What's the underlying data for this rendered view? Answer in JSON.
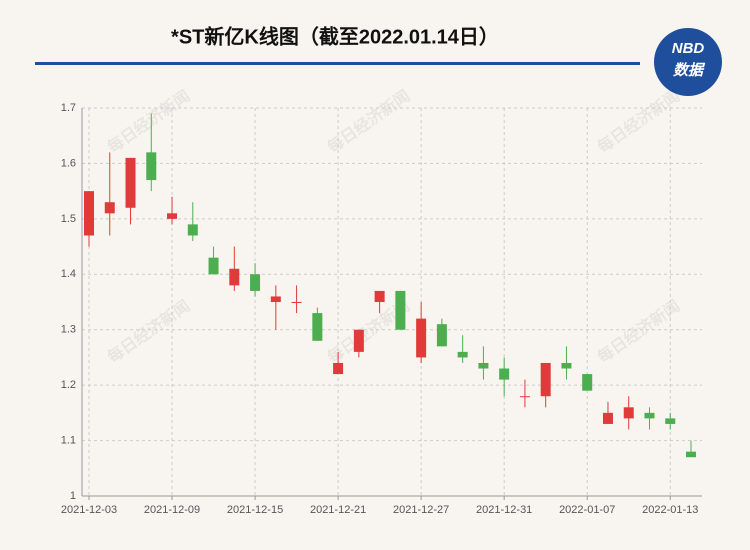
{
  "chart_data": {
    "type": "candlestick",
    "title": "*ST新亿K线图（截至2022.01.14日）",
    "logo": [
      "NBD",
      "数据"
    ],
    "watermark": "每日经济新闻",
    "categories": [
      "2021-12-03",
      null,
      null,
      null,
      "2021-12-09",
      null,
      null,
      null,
      "2021-12-15",
      null,
      null,
      null,
      "2021-12-21",
      null,
      null,
      null,
      "2021-12-27",
      null,
      null,
      null,
      "2021-12-31",
      null,
      null,
      null,
      "2022-01-07",
      null,
      null,
      null,
      "2022-01-13",
      null
    ],
    "open": [
      1.47,
      1.51,
      1.52,
      1.62,
      1.5,
      1.49,
      1.43,
      1.38,
      1.4,
      1.35,
      1.35,
      1.33,
      1.22,
      1.26,
      1.35,
      1.37,
      1.25,
      1.31,
      1.26,
      1.24,
      1.23,
      1.18,
      1.18,
      1.24,
      1.22,
      1.13,
      1.14,
      1.15,
      1.14,
      1.08
    ],
    "high": [
      1.55,
      1.62,
      1.61,
      1.69,
      1.54,
      1.53,
      1.45,
      1.45,
      1.42,
      1.38,
      1.38,
      1.34,
      1.26,
      1.3,
      1.37,
      1.37,
      1.35,
      1.32,
      1.29,
      1.27,
      1.25,
      1.21,
      1.24,
      1.27,
      1.22,
      1.17,
      1.18,
      1.16,
      1.15,
      1.1
    ],
    "low": [
      1.45,
      1.47,
      1.49,
      1.55,
      1.49,
      1.46,
      1.4,
      1.37,
      1.36,
      1.3,
      1.33,
      1.28,
      1.22,
      1.25,
      1.33,
      1.3,
      1.24,
      1.27,
      1.24,
      1.21,
      1.18,
      1.16,
      1.16,
      1.21,
      1.19,
      1.13,
      1.12,
      1.12,
      1.12,
      1.07
    ],
    "close": [
      1.55,
      1.53,
      1.61,
      1.57,
      1.51,
      1.47,
      1.4,
      1.41,
      1.37,
      1.36,
      1.35,
      1.28,
      1.24,
      1.3,
      1.37,
      1.3,
      1.32,
      1.27,
      1.25,
      1.23,
      1.21,
      1.18,
      1.24,
      1.23,
      1.19,
      1.15,
      1.16,
      1.14,
      1.13,
      1.07
    ],
    "up_color": "#e03a3a",
    "down_color": "#4cae4f",
    "ylim": [
      1,
      1.7
    ],
    "yticks": [
      1,
      1.1,
      1.2,
      1.3,
      1.4,
      1.5,
      1.6,
      1.7
    ],
    "grid": true
  }
}
